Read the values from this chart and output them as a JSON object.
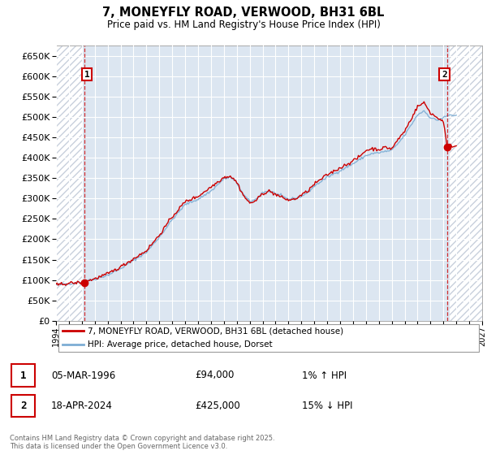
{
  "title_line1": "7, MONEYFLY ROAD, VERWOOD, BH31 6BL",
  "title_line2": "Price paid vs. HM Land Registry's House Price Index (HPI)",
  "ylim": [
    0,
    675000
  ],
  "ytick_step": 50000,
  "legend_line1": "7, MONEYFLY ROAD, VERWOOD, BH31 6BL (detached house)",
  "legend_line2": "HPI: Average price, detached house, Dorset",
  "sale1_date": "05-MAR-1996",
  "sale1_price": "£94,000",
  "sale1_hpi": "1% ↑ HPI",
  "sale1_year": 1996.17,
  "sale1_value": 94000,
  "sale2_date": "18-APR-2024",
  "sale2_price": "£425,000",
  "sale2_hpi": "15% ↓ HPI",
  "sale2_year": 2024.29,
  "sale2_value": 425000,
  "line_color": "#cc0000",
  "hpi_color": "#7dadd4",
  "bg_color": "#dce6f1",
  "grid_color": "#ffffff",
  "footnote": "Contains HM Land Registry data © Crown copyright and database right 2025.\nThis data is licensed under the Open Government Licence v3.0.",
  "xmin": 1994.0,
  "xmax": 2027.0,
  "sale1_vline": 1996.17,
  "sale2_vline": 2024.29
}
